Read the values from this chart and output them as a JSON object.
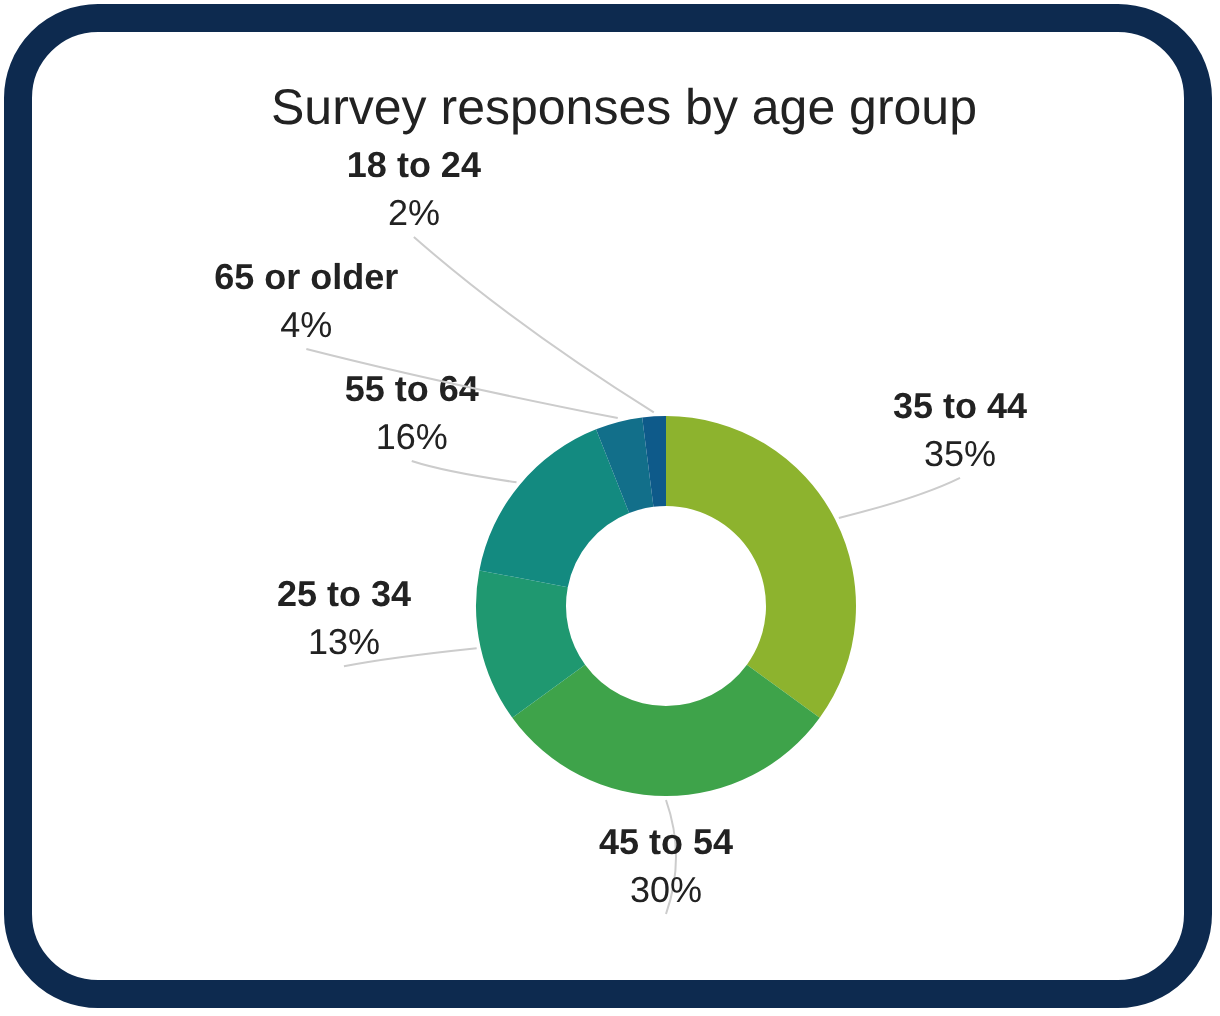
{
  "chart_data": {
    "type": "donut",
    "title": "Survey responses by age group",
    "categories": [
      "35 to 44",
      "45 to 54",
      "25 to 34",
      "55 to 64",
      "65 or older",
      "18 to 24"
    ],
    "values": [
      35,
      30,
      13,
      16,
      4,
      2
    ],
    "colors": [
      "#8db32e",
      "#3ea34a",
      "#1f9870",
      "#138a80",
      "#126f8a",
      "#0e5a8a"
    ],
    "value_labels": [
      "35%",
      "30%",
      "13%",
      "16%",
      "4%",
      "2%"
    ]
  }
}
